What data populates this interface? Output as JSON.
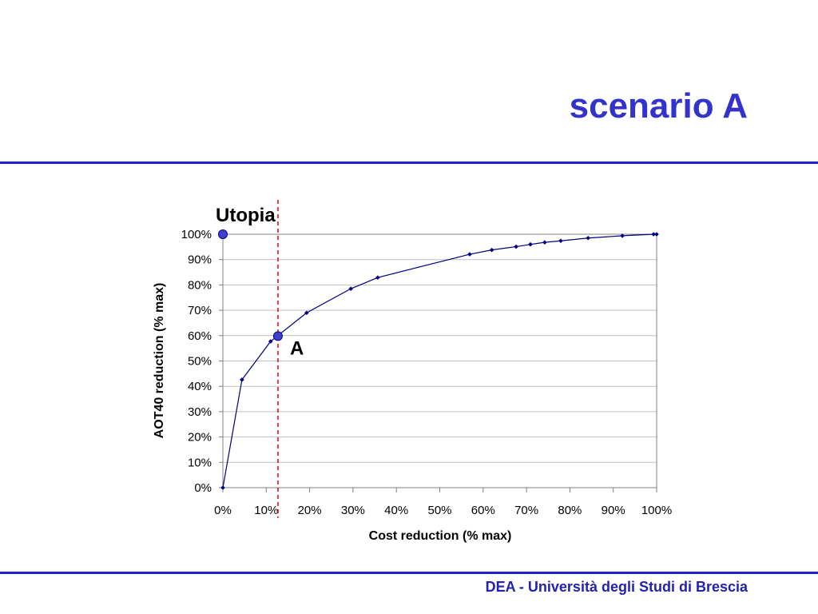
{
  "slide": {
    "title": "scenario A",
    "footer": "DEA - Università degli Studi di Brescia"
  },
  "colors": {
    "title": "#3333cc",
    "rule": "#2222cc",
    "footer": "#2222aa",
    "series": "#000080",
    "highlight_fill": "#4040cc",
    "guide_line": "#ee0000",
    "gridline": "#c0c0c0",
    "axis": "#808080"
  },
  "chart_data": {
    "type": "line",
    "title": "",
    "xlabel": "Cost reduction (% max)",
    "ylabel": "AOT40 reduction (% max)",
    "xlim": [
      0,
      100
    ],
    "ylim": [
      0,
      100
    ],
    "x_ticks": [
      "0%",
      "10%",
      "20%",
      "30%",
      "40%",
      "50%",
      "60%",
      "70%",
      "80%",
      "90%",
      "100%"
    ],
    "y_ticks": [
      "0%",
      "10%",
      "20%",
      "30%",
      "40%",
      "50%",
      "60%",
      "70%",
      "80%",
      "90%",
      "100%"
    ],
    "grid": "horizontal",
    "legend": "none",
    "series": [
      {
        "x": [
          0,
          4.4,
          11,
          19.3,
          29.5,
          35.7,
          56.9,
          62,
          67.6,
          70.9,
          74.2,
          77.9,
          84.2,
          92.1,
          99.3,
          100
        ],
        "y": [
          0,
          42.6,
          57.7,
          69,
          78.5,
          82.9,
          92.1,
          93.8,
          95.1,
          96,
          96.8,
          97.4,
          98.5,
          99.4,
          100,
          100
        ]
      }
    ],
    "annotations": [
      {
        "label": "Utopia",
        "x": 0,
        "y": 100,
        "marker": "circle"
      },
      {
        "label": "A",
        "x": 12.7,
        "y": 59.8,
        "marker": "circle"
      }
    ],
    "reference_line": {
      "orientation": "vertical",
      "x": 12.7,
      "style": "dashed"
    }
  }
}
